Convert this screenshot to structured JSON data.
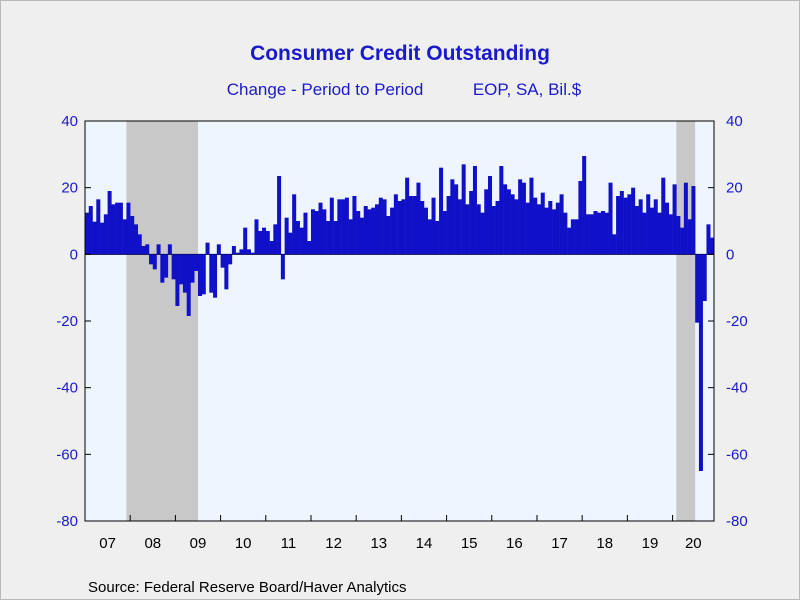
{
  "chart_data": {
    "type": "bar",
    "title": "Consumer Credit Outstanding",
    "subtitle_left": "Change - Period to Period",
    "subtitle_right": "EOP, SA, Bil.$",
    "source": "Source:  Federal Reserve Board/Haver Analytics",
    "xlabel": "",
    "ylabel": "",
    "ylim": [
      -80,
      40
    ],
    "yticks": [
      "40",
      "20",
      "0",
      "-20",
      "-40",
      "-60",
      "-80"
    ],
    "ytick_values": [
      40,
      20,
      0,
      -20,
      -40,
      -60,
      -80
    ],
    "x_start": "2007-01",
    "year_labels": [
      "07",
      "08",
      "09",
      "10",
      "11",
      "12",
      "13",
      "14",
      "15",
      "16",
      "17",
      "18",
      "19",
      "20"
    ],
    "recessions": [
      [
        "2007-12",
        "2009-06"
      ],
      [
        "2020-02",
        "2020-06"
      ]
    ],
    "grid": false,
    "colors": {
      "bar": "#1010c8",
      "plot_bg": "#eef5ff",
      "recession": "#c8c8c8",
      "text": "#1a1acc",
      "page_bg": "#efefef"
    },
    "series": [
      {
        "values": [
          12.5,
          14.5,
          9.8,
          16.5,
          9.5,
          12.0,
          19.0,
          15.0,
          15.5,
          15.5,
          10.5,
          15.5,
          11.5,
          9.0,
          6.0,
          2.5,
          3.0,
          -3.0,
          -4.5,
          3.0,
          -8.5,
          -7.0,
          3.0,
          -7.5,
          -15.5,
          -9.0,
          -11.5,
          -18.5,
          -8.5,
          -5.0,
          -12.5,
          -12.0,
          3.5,
          -11.5,
          -13.0,
          3.0,
          -4.0,
          -10.5,
          -3.0,
          2.5,
          0.5,
          1.5,
          8.0,
          1.5,
          0.5,
          10.5,
          7.0,
          8.0,
          7.0,
          4.0,
          9.0,
          23.5,
          -7.5,
          11.0,
          6.5,
          18.0,
          10.0,
          8.0,
          12.5,
          4.0,
          13.5,
          13.0,
          15.5,
          13.5,
          10.0,
          17.0,
          10.0,
          16.5,
          16.5,
          17.0,
          10.5,
          17.5,
          13.0,
          11.0,
          14.5,
          13.5,
          14.0,
          15.0,
          17.0,
          16.5,
          11.5,
          14.0,
          18.0,
          16.0,
          16.5,
          23.0,
          17.5,
          17.5,
          21.5,
          16.0,
          14.0,
          10.5,
          17.0,
          10.0,
          26.0,
          13.0,
          17.5,
          22.5,
          21.0,
          16.5,
          27.0,
          15.0,
          19.0,
          26.5,
          15.0,
          12.5,
          19.5,
          23.5,
          14.5,
          16.0,
          26.5,
          21.0,
          19.5,
          18.0,
          16.5,
          22.5,
          21.5,
          15.5,
          23.0,
          17.0,
          15.0,
          18.5,
          14.0,
          16.0,
          13.5,
          15.5,
          18.0,
          12.5,
          8.0,
          10.5,
          10.5,
          22.0,
          29.5,
          12.0,
          12.0,
          13.0,
          12.5,
          13.0,
          12.5,
          21.5,
          6.0,
          17.5,
          19.0,
          17.0,
          18.0,
          20.0,
          14.5,
          16.5,
          12.5,
          18.0,
          14.0,
          16.5,
          12.5,
          23.0,
          15.5,
          12.0,
          21.0,
          11.5,
          8.0,
          21.5,
          10.5,
          20.5,
          -20.5,
          -65.0,
          -14.0,
          9.0,
          5.0
        ]
      }
    ]
  }
}
